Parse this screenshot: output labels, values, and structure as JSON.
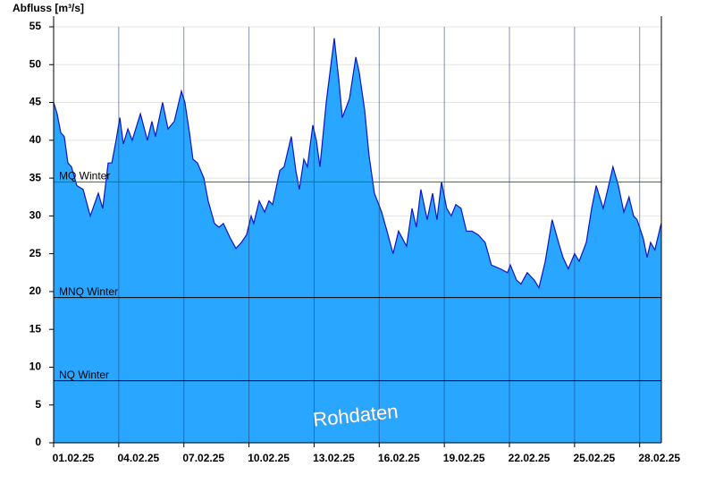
{
  "chart_data": {
    "type": "area",
    "y_axis_label": "Abfluss [m³/s]",
    "watermark": "Rohdaten",
    "color": "#29a6ff",
    "line_color": "#0a14c8",
    "grid": true,
    "x": [
      0,
      0.16,
      0.33,
      0.49,
      0.66,
      0.82,
      1.07,
      1.36,
      1.69,
      2.06,
      2.26,
      2.51,
      2.68,
      2.88,
      3.05,
      3.21,
      3.42,
      3.62,
      4.0,
      4.32,
      4.53,
      4.69,
      5.02,
      5.27,
      5.56,
      5.89,
      6.05,
      6.26,
      6.42,
      6.63,
      6.92,
      7.12,
      7.41,
      7.62,
      7.82,
      8.15,
      8.4,
      8.65,
      8.89,
      9.1,
      9.22,
      9.47,
      9.72,
      9.92,
      10.09,
      10.42,
      10.62,
      10.95,
      11.16,
      11.32,
      11.53,
      11.69,
      11.94,
      12.1,
      12.27,
      12.56,
      12.93,
      13.14,
      13.3,
      13.63,
      13.92,
      14.08,
      14.33,
      14.53,
      14.78,
      15.11,
      15.36,
      15.64,
      15.89,
      16.26,
      16.51,
      16.71,
      16.92,
      17.21,
      17.46,
      17.66,
      17.87,
      18.11,
      18.32,
      18.53,
      18.77,
      19.02,
      19.27,
      19.56,
      19.88,
      20.17,
      20.58,
      20.91,
      21.04,
      21.33,
      21.53,
      21.82,
      22.15,
      22.36,
      22.65,
      22.97,
      23.26,
      23.47,
      23.71,
      24.0,
      24.21,
      24.54,
      24.79,
      25.0,
      25.32,
      25.53,
      25.77,
      26.02,
      26.27,
      26.51,
      26.72,
      26.88,
      27.17,
      27.34,
      27.5,
      27.7,
      27.99
    ],
    "values": [
      45,
      43.5,
      41,
      40.5,
      37,
      36.5,
      34,
      33.5,
      30,
      33,
      31,
      37,
      37,
      40,
      43,
      39.5,
      41.5,
      40,
      43.5,
      40,
      42.5,
      40.5,
      45,
      41.5,
      42.5,
      46.5,
      45,
      41,
      37.5,
      37,
      35,
      32,
      29,
      28.5,
      29,
      27,
      25.7,
      26.5,
      27.5,
      30,
      29,
      32,
      30.5,
      32,
      31.5,
      36,
      36.5,
      40.5,
      36,
      33.5,
      37.5,
      36.5,
      42,
      40,
      36.5,
      45,
      53.5,
      48,
      43,
      45.5,
      51,
      49,
      44,
      38,
      33,
      30.5,
      28,
      25,
      28,
      26,
      31,
      28.5,
      33.5,
      29.5,
      33,
      29.5,
      34.5,
      31,
      30,
      31.5,
      31,
      28,
      28,
      27.5,
      26.5,
      23.5,
      23,
      22.5,
      23.5,
      21.5,
      21,
      22.5,
      21.5,
      20.5,
      24,
      29.5,
      26.5,
      24.5,
      23,
      25,
      24,
      26.5,
      31,
      34,
      31,
      33.5,
      36.5,
      34,
      30.5,
      32.5,
      30,
      29.5,
      27,
      24.5,
      26.5,
      25.5,
      29
    ],
    "xlim": [
      0,
      28
    ],
    "xticks": [
      {
        "value": 0,
        "label": "01.02.25"
      },
      {
        "value": 3,
        "label": "04.02.25"
      },
      {
        "value": 6,
        "label": "07.02.25"
      },
      {
        "value": 9,
        "label": "10.02.25"
      },
      {
        "value": 12,
        "label": "13.02.25"
      },
      {
        "value": 15,
        "label": "16.02.25"
      },
      {
        "value": 18,
        "label": "19.02.25"
      },
      {
        "value": 21,
        "label": "22.02.25"
      },
      {
        "value": 24,
        "label": "25.02.25"
      },
      {
        "value": 27,
        "label": "28.02.25"
      }
    ],
    "ylim": [
      0,
      55
    ],
    "yticks": [
      0,
      5,
      10,
      15,
      20,
      25,
      30,
      35,
      40,
      45,
      50,
      55
    ],
    "reference_lines": [
      {
        "label": "MQ Winter",
        "value": 34.5,
        "color": "#118811"
      },
      {
        "label": "MNQ Winter",
        "value": 19.2,
        "color": "#000000"
      },
      {
        "label": "NQ Winter",
        "value": 8.2,
        "color": "#000000"
      }
    ]
  }
}
